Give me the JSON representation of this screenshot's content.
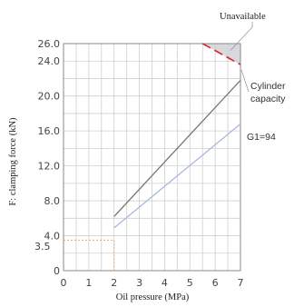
{
  "chart_data": {
    "type": "line",
    "xlabel": "Oil pressure (MPa)",
    "ylabel": "F: clamping force (kN)",
    "xlim": [
      0,
      7
    ],
    "ylim": [
      0,
      26
    ],
    "x_ticks": [
      "0",
      "1",
      "2",
      "3",
      "4",
      "5",
      "6",
      "7"
    ],
    "y_ticks": [
      "0",
      "4.0",
      "8.0",
      "12.0",
      "16.0",
      "20.0",
      "24.0",
      "26.0"
    ],
    "grid": true,
    "series": [
      {
        "name": "Cylinder capacity",
        "x": [
          5.5,
          7
        ],
        "y": [
          26.0,
          23.6
        ],
        "color": "#d6252c",
        "dash": true
      },
      {
        "name": "",
        "x": [
          2,
          7
        ],
        "y": [
          6.2,
          21.8
        ],
        "color": "#777777"
      },
      {
        "name": "G1=94",
        "x": [
          2,
          7
        ],
        "y": [
          4.9,
          16.8
        ],
        "color": "#a6b6dc"
      }
    ],
    "unavailable_region": {
      "label": "Unavailable",
      "x": [
        5.5,
        7
      ],
      "y": [
        23.6,
        26.0
      ]
    },
    "annotations": [
      {
        "text": "Unavailable"
      },
      {
        "text": "Cylinder"
      },
      {
        "text": "capacity"
      },
      {
        "text": "G1=94"
      },
      {
        "text": "3.5",
        "x": 2,
        "y": 3.5,
        "color": "#f0a070"
      }
    ]
  }
}
